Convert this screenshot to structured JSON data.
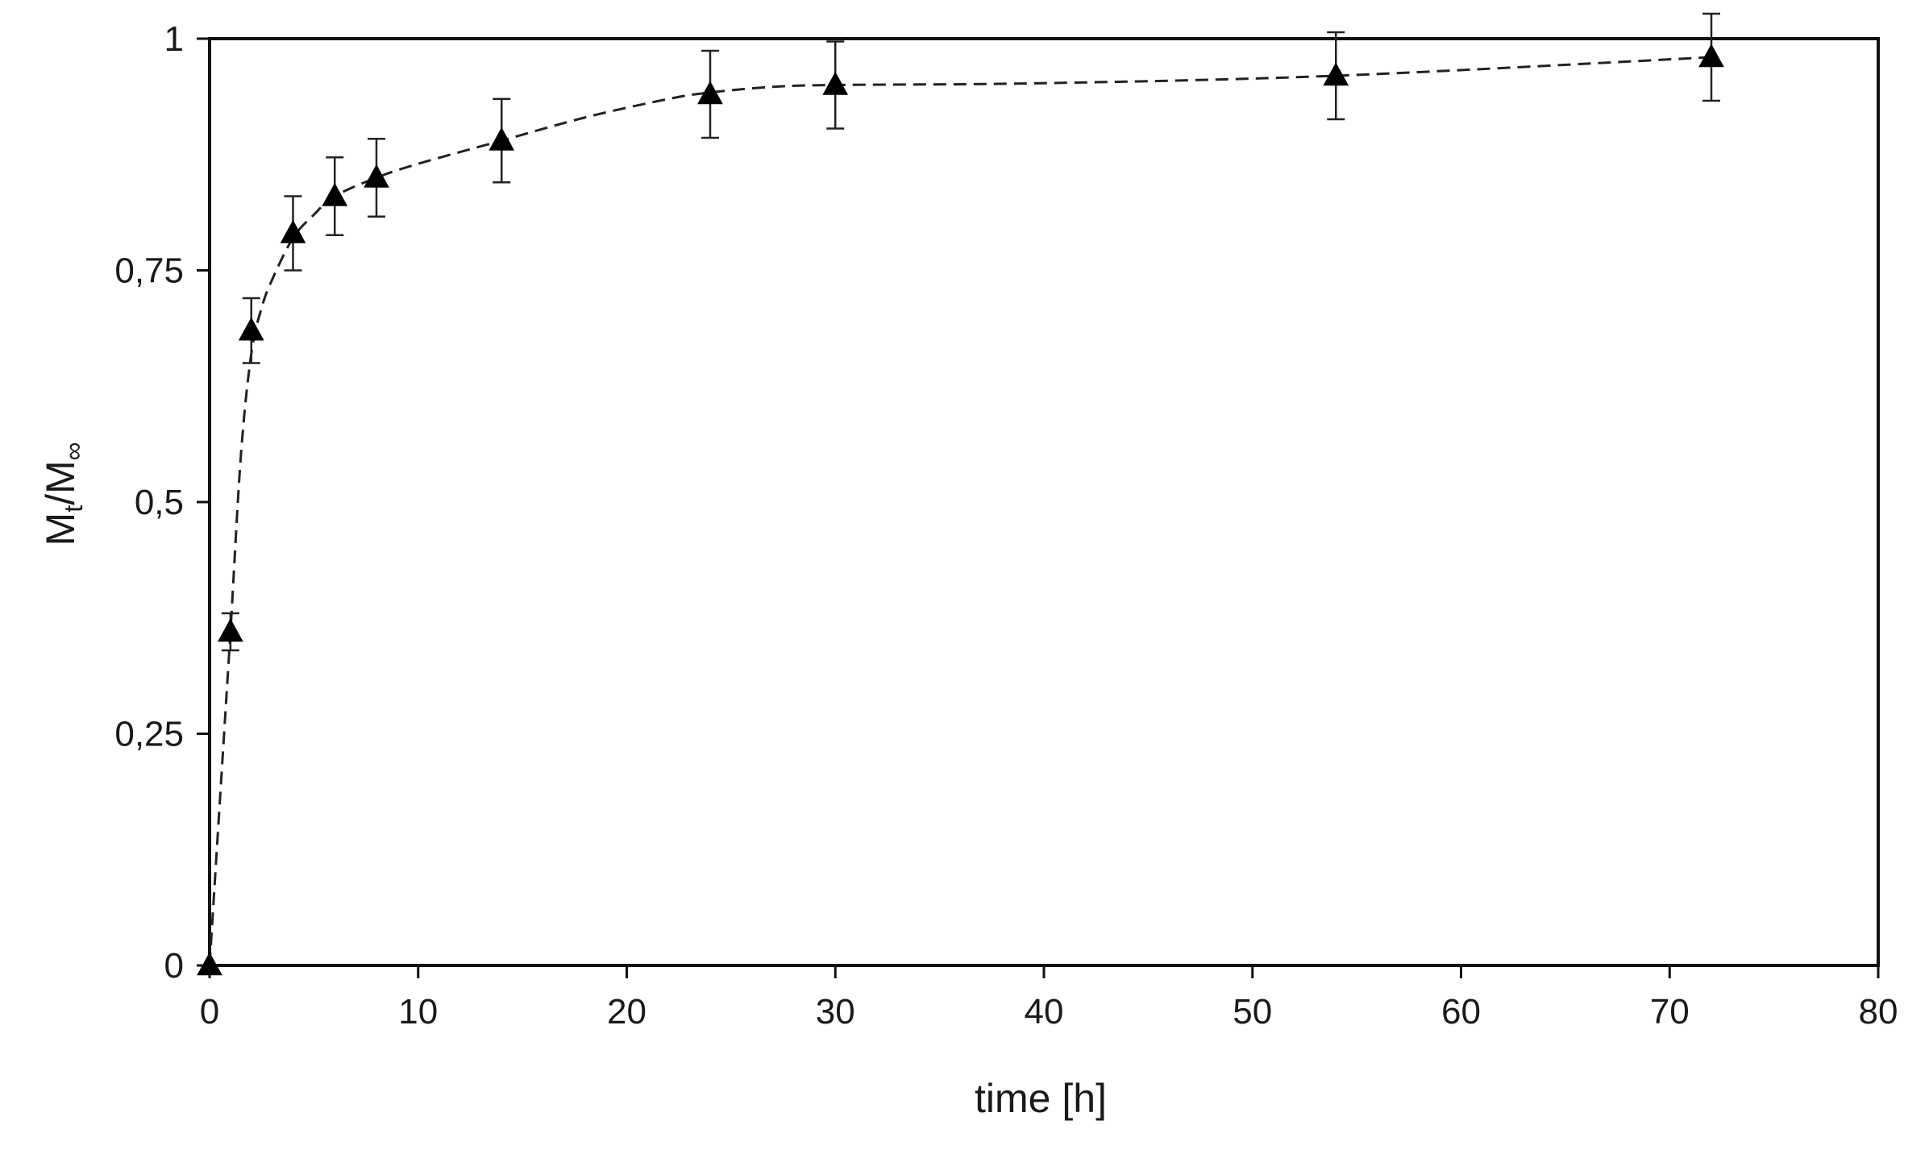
{
  "chart_data": {
    "type": "scatter",
    "title": "",
    "xlabel": "time [h]",
    "ylabel": {
      "main": "M",
      "sub1": "t",
      "sep": "/M",
      "sub2": "∞"
    },
    "xlim": [
      0,
      80
    ],
    "ylim": [
      0,
      1
    ],
    "x_ticks": [
      0,
      10,
      20,
      30,
      40,
      50,
      60,
      70,
      80
    ],
    "x_tick_labels": [
      "0",
      "10",
      "20",
      "30",
      "40",
      "50",
      "60",
      "70",
      "80"
    ],
    "y_ticks": [
      0,
      0.25,
      0.5,
      0.75,
      1
    ],
    "y_tick_labels": [
      "0",
      "0,25",
      "0,5",
      "0,75",
      "1"
    ],
    "grid": false,
    "legend": "none",
    "marker": "filled-triangle",
    "fit_line": "dashed",
    "color": "#000000",
    "series": [
      {
        "x": [
          0,
          1,
          2,
          4,
          6,
          8,
          14,
          24,
          30,
          54,
          72
        ],
        "y": [
          0,
          0.36,
          0.685,
          0.79,
          0.83,
          0.85,
          0.89,
          0.94,
          0.95,
          0.96,
          0.98
        ],
        "error": [
          0,
          0.02,
          0.035,
          0.04,
          0.042,
          0.042,
          0.045,
          0.047,
          0.047,
          0.047,
          0.047
        ]
      }
    ],
    "fit_curve": {
      "x": [
        0,
        0.5,
        1,
        1.5,
        2,
        2.5,
        3,
        4,
        5,
        6,
        8,
        10,
        14,
        18,
        22,
        24,
        27,
        30,
        40,
        54,
        72
      ],
      "y": [
        0,
        0.18,
        0.36,
        0.55,
        0.66,
        0.71,
        0.74,
        0.785,
        0.81,
        0.83,
        0.85,
        0.865,
        0.89,
        0.915,
        0.935,
        0.942,
        0.948,
        0.95,
        0.952,
        0.96,
        0.98
      ]
    }
  }
}
